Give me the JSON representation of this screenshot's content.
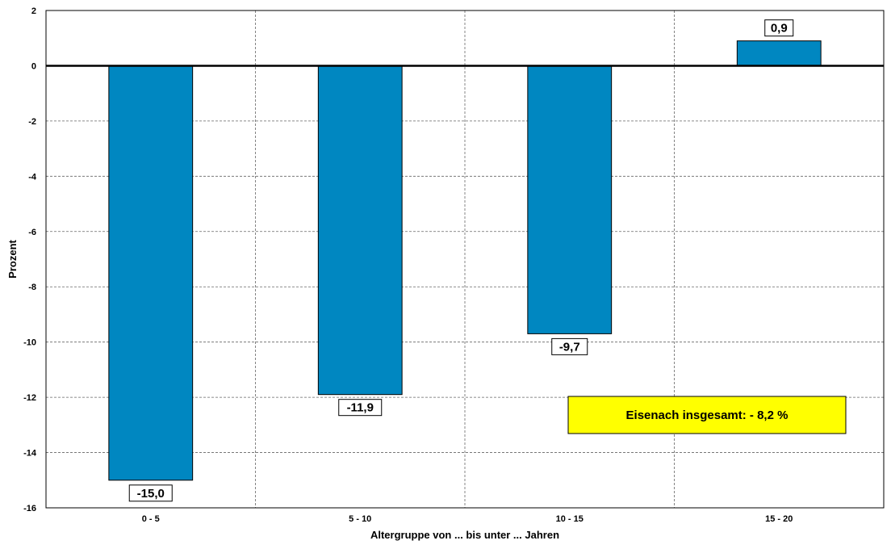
{
  "chart_data": {
    "type": "bar",
    "categories": [
      "0 - 5",
      "5 - 10",
      "10 - 15",
      "15 - 20"
    ],
    "values": [
      -15.0,
      -11.9,
      -9.7,
      0.9
    ],
    "data_labels": [
      "-15,0",
      "-11,9",
      "-9,7",
      "0,9"
    ],
    "xlabel": "Altergruppe von ... bis unter ... Jahren",
    "ylabel": "Prozent",
    "ylim": [
      -16,
      2
    ],
    "yticks": [
      2,
      0,
      -2,
      -4,
      -6,
      -8,
      -10,
      -12,
      -14,
      -16
    ],
    "grid": true,
    "bar_color": "#0087c1",
    "annotation": {
      "text": "Eisenach insgesamt: - 8,2 %",
      "background": "#ffff00",
      "position": "bottom-right"
    }
  }
}
